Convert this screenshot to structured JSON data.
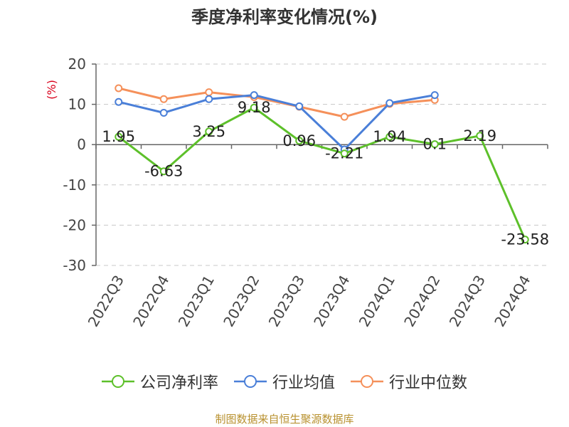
{
  "chart_data": {
    "type": "line",
    "title": "季度净利率变化情况(%)",
    "ylabel": "(%)",
    "xlabel": "",
    "categories": [
      "2022Q3",
      "2022Q4",
      "2023Q1",
      "2023Q2",
      "2023Q3",
      "2023Q4",
      "2024Q1",
      "2024Q2",
      "2024Q3",
      "2024Q4"
    ],
    "ylim": [
      -30,
      20
    ],
    "yticks": [
      20,
      10,
      0,
      -10,
      -20,
      -30
    ],
    "grid": true,
    "legend_position": "bottom",
    "series": [
      {
        "name": "公司净利率",
        "color": "#5dc02a",
        "values": [
          1.95,
          -6.63,
          3.25,
          9.18,
          0.96,
          -2.21,
          1.94,
          0.1,
          2.19,
          -23.58
        ],
        "data_labels": [
          "1.95",
          "-6.63",
          "3.25",
          "9.18",
          "0.96",
          "-2.21",
          "1.94",
          "0.1",
          "2.19",
          "-23.58"
        ]
      },
      {
        "name": "行业均值",
        "color": "#4a7fd8",
        "values": [
          10.6,
          7.9,
          11.3,
          12.3,
          9.5,
          -1.2,
          10.3,
          12.3,
          null,
          null
        ]
      },
      {
        "name": "行业中位数",
        "color": "#f5905a",
        "values": [
          14.0,
          11.3,
          13.0,
          11.8,
          9.4,
          6.9,
          10.1,
          11.1,
          null,
          null
        ]
      }
    ]
  },
  "source_note": "制图数据来自恒生聚源数据库"
}
